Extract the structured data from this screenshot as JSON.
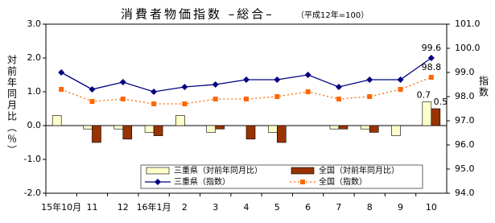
{
  "chart_data": {
    "type": "bar-line",
    "title": "消費者物価指数 –総合–",
    "subtitle": "（平成12年=100）",
    "ylabel": "対前年同月比（％）",
    "y2label": "指数",
    "categories": [
      "15年10月",
      "11",
      "12",
      "16年1月",
      "2",
      "3",
      "4",
      "5",
      "6",
      "7",
      "8",
      "9",
      "10"
    ],
    "series": [
      {
        "name": "三重県（対前年同月比）",
        "type": "bar",
        "color": "#ffffcc",
        "values": [
          0.3,
          -0.1,
          -0.1,
          -0.2,
          0.3,
          -0.2,
          0,
          -0.2,
          0,
          -0.1,
          -0.1,
          -0.3,
          0.7
        ],
        "label_last": true
      },
      {
        "name": "全国（対前年同月比）",
        "type": "bar",
        "color": "#993300",
        "values": [
          0,
          -0.5,
          -0.4,
          -0.3,
          0,
          -0.1,
          -0.4,
          -0.5,
          0,
          -0.1,
          -0.2,
          0,
          0.5
        ],
        "label_last": true
      },
      {
        "name": "三重県（指数）",
        "type": "line",
        "axis": "y2",
        "color": "#000080",
        "marker": "diamond",
        "dash": false,
        "values": [
          99.0,
          98.3,
          98.6,
          98.2,
          98.4,
          98.5,
          98.7,
          98.7,
          98.9,
          98.4,
          98.7,
          98.7,
          99.6
        ],
        "label_last": true
      },
      {
        "name": "全国（指数）",
        "type": "line",
        "axis": "y2",
        "color": "#ff6600",
        "marker": "square",
        "dash": true,
        "values": [
          98.3,
          97.8,
          97.9,
          97.7,
          97.7,
          97.9,
          97.9,
          98.0,
          98.2,
          97.9,
          98.0,
          98.3,
          98.8
        ],
        "label_last": true
      }
    ],
    "ylim": [
      -2,
      3
    ],
    "yticks": [
      {
        "value": 3,
        "label": "3.0"
      },
      {
        "value": 2,
        "label": "2.0"
      },
      {
        "value": 1,
        "label": "1.0"
      },
      {
        "value": 0,
        "label": "0.0"
      },
      {
        "value": -1,
        "label": "-1.0"
      },
      {
        "value": -2,
        "label": "-2.0"
      }
    ],
    "y2lim": [
      94,
      101
    ],
    "y2ticks": [
      {
        "value": 101,
        "label": "101.0"
      },
      {
        "value": 100,
        "label": "100.0"
      },
      {
        "value": 99,
        "label": "99.0"
      },
      {
        "value": 98,
        "label": "98.0"
      },
      {
        "value": 97,
        "label": "97.0"
      },
      {
        "value": 96,
        "label": "96.0"
      },
      {
        "value": 95,
        "label": "95.0"
      },
      {
        "value": 94,
        "label": "94.0"
      }
    ],
    "grid": false
  }
}
